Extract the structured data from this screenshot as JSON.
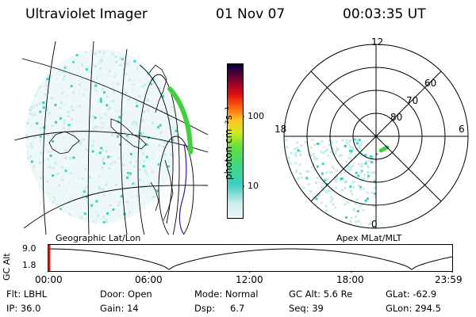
{
  "header": {
    "instrument": "Ultraviolet Imager",
    "date": "01 Nov 07",
    "time": "00:03:35 UT"
  },
  "colorbar": {
    "unit_label": "photon cm⁻²s⁻¹",
    "ticks": [
      "100",
      "10"
    ]
  },
  "geo_panel": {
    "label": "Geographic Lat/Lon"
  },
  "polar_panel": {
    "label": "Apex MLat/MLT",
    "mlt_labels": [
      "12",
      "18",
      "6",
      "0"
    ],
    "lat_labels": [
      "60",
      "70",
      "80"
    ]
  },
  "altitude_plot": {
    "ylabel": "GC Alt",
    "yticks": [
      "9.0",
      "1.8"
    ],
    "xticks": [
      "00:00",
      "06:00",
      "12:00",
      "18:00",
      "23:59"
    ]
  },
  "info": {
    "flt": "Flt: LBHL",
    "ip": "IP: 36.0",
    "door": "Door: Open",
    "gain": "Gain: 14",
    "mode": "Mode: Normal",
    "dsp_label": "Dsp:",
    "dsp_value": "6.7",
    "gc_alt": "GC Alt: 5.6 Re",
    "seq": "Seq: 39",
    "glat": "GLat: -62.9",
    "glon": "GLon: 294.5"
  },
  "colors": {
    "low": "#c8ecec",
    "mid": "#3ad0c0",
    "green": "#40d040",
    "marker": "#c02020"
  }
}
